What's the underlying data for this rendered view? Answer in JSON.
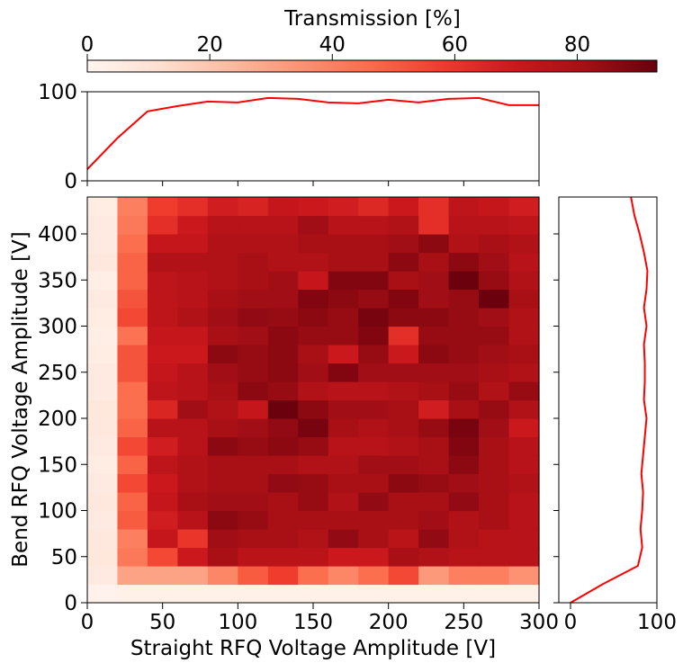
{
  "colorbar": {
    "label": "Transmission [%]",
    "ticks": [
      0,
      20,
      40,
      60,
      80
    ],
    "range": [
      0,
      93
    ]
  },
  "chart_data": {
    "type": "heatmap",
    "colormap": "Reds",
    "xlabel": "Straight RFQ Voltage Amplitude [V]",
    "ylabel": "Bend RFQ Voltage Amplitude [V]",
    "xlim": [
      0,
      300
    ],
    "ylim": [
      0,
      440
    ],
    "x_ticks": [
      0,
      50,
      100,
      150,
      200,
      250,
      300
    ],
    "y_ticks": [
      0,
      50,
      100,
      150,
      200,
      250,
      300,
      350,
      400
    ],
    "x_bin_edges": [
      0,
      20,
      40,
      60,
      80,
      100,
      120,
      140,
      160,
      180,
      200,
      220,
      240,
      260,
      280,
      300
    ],
    "y_bin_edges": [
      0,
      20,
      40,
      60,
      80,
      100,
      120,
      140,
      160,
      180,
      200,
      220,
      240,
      260,
      280,
      300,
      320,
      340,
      360,
      380,
      400,
      420,
      440
    ],
    "values_rows_bottom_to_top": [
      [
        2,
        3,
        3,
        3,
        3,
        3,
        3,
        3,
        3,
        3,
        3,
        3,
        3,
        3,
        3
      ],
      [
        6,
        30,
        30,
        30,
        38,
        50,
        58,
        45,
        38,
        45,
        55,
        33,
        40,
        40,
        35
      ],
      [
        8,
        42,
        55,
        70,
        80,
        75,
        75,
        75,
        70,
        70,
        80,
        78,
        76,
        76,
        76
      ],
      [
        7,
        40,
        72,
        60,
        82,
        80,
        80,
        78,
        85,
        80,
        75,
        85,
        78,
        76,
        76
      ],
      [
        6,
        50,
        68,
        76,
        86,
        84,
        80,
        80,
        80,
        80,
        80,
        82,
        78,
        80,
        76
      ],
      [
        7,
        48,
        72,
        80,
        82,
        82,
        80,
        84,
        78,
        85,
        80,
        80,
        85,
        80,
        76
      ],
      [
        6,
        55,
        70,
        78,
        80,
        80,
        85,
        84,
        80,
        80,
        86,
        84,
        82,
        80,
        78
      ],
      [
        5,
        48,
        74,
        78,
        80,
        80,
        80,
        78,
        78,
        82,
        82,
        80,
        86,
        80,
        76
      ],
      [
        6,
        55,
        68,
        76,
        86,
        84,
        86,
        84,
        76,
        76,
        78,
        80,
        88,
        80,
        76
      ],
      [
        7,
        48,
        76,
        76,
        80,
        82,
        85,
        90,
        80,
        78,
        80,
        84,
        90,
        82,
        70
      ],
      [
        8,
        45,
        65,
        82,
        78,
        72,
        92,
        86,
        82,
        82,
        80,
        68,
        80,
        84,
        78
      ],
      [
        6,
        45,
        74,
        76,
        80,
        86,
        84,
        78,
        76,
        76,
        78,
        80,
        84,
        78,
        84
      ],
      [
        6,
        52,
        72,
        76,
        82,
        84,
        86,
        82,
        88,
        82,
        82,
        82,
        82,
        80,
        78
      ],
      [
        5,
        52,
        70,
        70,
        86,
        84,
        86,
        80,
        70,
        84,
        70,
        86,
        84,
        82,
        80
      ],
      [
        4,
        44,
        72,
        72,
        80,
        82,
        86,
        84,
        84,
        88,
        62,
        84,
        84,
        84,
        78
      ],
      [
        5,
        55,
        74,
        78,
        82,
        85,
        84,
        86,
        84,
        90,
        86,
        86,
        84,
        82,
        78
      ],
      [
        6,
        52,
        74,
        76,
        80,
        82,
        82,
        88,
        86,
        84,
        88,
        82,
        84,
        92,
        80
      ],
      [
        4,
        48,
        74,
        76,
        78,
        80,
        82,
        72,
        88,
        88,
        80,
        82,
        92,
        84,
        78
      ],
      [
        7,
        48,
        78,
        78,
        78,
        80,
        78,
        78,
        80,
        80,
        86,
        80,
        86,
        82,
        76
      ],
      [
        6,
        45,
        72,
        72,
        78,
        78,
        78,
        80,
        80,
        80,
        82,
        86,
        78,
        80,
        78
      ],
      [
        6,
        42,
        62,
        70,
        76,
        76,
        76,
        82,
        76,
        76,
        78,
        62,
        76,
        76,
        74
      ],
      [
        5,
        40,
        58,
        62,
        68,
        66,
        72,
        70,
        68,
        64,
        70,
        62,
        74,
        72,
        68
      ]
    ],
    "top_marginal": {
      "type": "line",
      "color": "#ff0000",
      "ylim": [
        0,
        100
      ],
      "y_ticks": [
        0,
        100
      ],
      "x": [
        0,
        20,
        40,
        60,
        80,
        100,
        120,
        140,
        160,
        180,
        200,
        220,
        240,
        260,
        280,
        300
      ],
      "y": [
        13,
        48,
        78,
        84,
        89,
        88,
        93,
        92,
        88,
        87,
        91,
        88,
        92,
        93,
        85,
        85
      ]
    },
    "right_marginal": {
      "type": "line",
      "color": "#ff0000",
      "xlim": [
        0,
        100
      ],
      "x_ticks": [
        0,
        100
      ],
      "y": [
        0,
        20,
        40,
        60,
        80,
        100,
        120,
        140,
        160,
        180,
        200,
        220,
        240,
        260,
        280,
        300,
        320,
        340,
        360,
        380,
        400,
        420,
        440
      ],
      "x": [
        0,
        37,
        78,
        83,
        81,
        83,
        84,
        82,
        84,
        86,
        88,
        85,
        86,
        86,
        85,
        88,
        85,
        88,
        89,
        85,
        80,
        74,
        70
      ]
    }
  }
}
